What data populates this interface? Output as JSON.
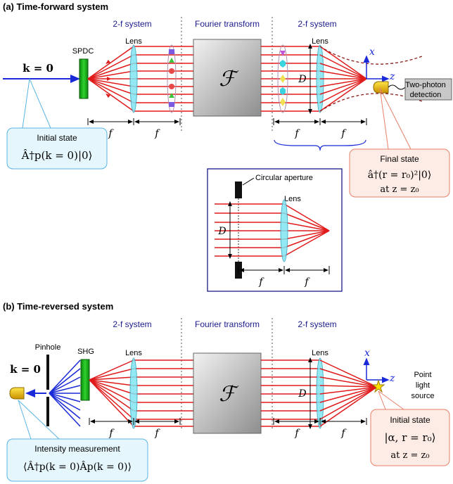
{
  "panel_a": {
    "title": "(a) Time-forward system",
    "sections": {
      "two_f_left": "2-f system",
      "fourier": "Fourier transform",
      "two_f_right": "2-f system"
    },
    "labels": {
      "spdc": "SPDC",
      "lens_left": "Lens",
      "lens_right": "Lens",
      "k_eq": "k = 0",
      "fourier_symbol": "ℱ",
      "D": "D",
      "x_axis": "x",
      "z_axis": "z",
      "detector_line1": "Two-photon",
      "detector_line2": "detection",
      "f": "f"
    },
    "initial_state": {
      "title": "Initial state",
      "formula": "Â†p(k = 0)|0⟩"
    },
    "final_state": {
      "title": "Final state",
      "formula": "â†(r = r₀)²|0⟩",
      "at": "at z = z₀"
    },
    "inset": {
      "aperture": "Circular aperture",
      "lens": "Lens",
      "D": "D",
      "f": "f"
    }
  },
  "panel_b": {
    "title": "(b) Time-reversed system",
    "sections": {
      "two_f_left": "2-f system",
      "fourier": "Fourier transform",
      "two_f_right": "2-f system"
    },
    "labels": {
      "pinhole": "Pinhole",
      "shg": "SHG",
      "lens_left": "Lens",
      "lens_right": "Lens",
      "k_eq": "k = 0",
      "fourier_symbol": "ℱ",
      "D": "D",
      "x_axis": "x",
      "z_axis": "z",
      "point_line1": "Point",
      "point_line2": "light",
      "point_line3": "source",
      "f": "f"
    },
    "initial_state": {
      "title": "Initial state",
      "formula": "|α, r = r₀⟩",
      "at": "at z = z₀"
    },
    "measurement": {
      "title": "Intensity measurement",
      "formula": "⟨Â†p(k = 0)Âp(k = 0)⟩"
    }
  },
  "colors": {
    "ray": "#e01a1a",
    "pump": "#1a2ad8",
    "crystal": "#1bb31b",
    "lens": "#7fe4f2",
    "box_gray": "#a8a8a8",
    "callout_blue_bg": "#e6f6fd",
    "callout_blue_border": "#5ab4e6",
    "callout_red_bg": "#fdece6",
    "callout_red_border": "#e88066",
    "section_text": "#1a1a8c",
    "detector": "#f0c000",
    "inset_border": "#1a1a8c"
  }
}
